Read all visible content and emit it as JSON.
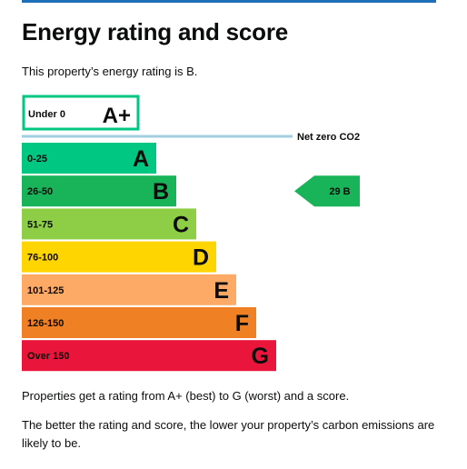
{
  "page": {
    "title": "Energy rating and score",
    "intro": "This property’s energy rating is B.",
    "paragraph_1": "Properties get a rating from A+ (best) to G (worst) and a score.",
    "paragraph_2": "The better the rating and score, the lower your property’s carbon emissions are likely to be."
  },
  "chart_data": {
    "type": "bar",
    "net_zero_label": "Net zero CO2",
    "top_band": {
      "range": "Under 0",
      "letter": "A+",
      "color": "#00c781"
    },
    "bands": [
      {
        "range": "0-25",
        "letter": "A",
        "color": "#00c781"
      },
      {
        "range": "26-50",
        "letter": "B",
        "color": "#19b459"
      },
      {
        "range": "51-75",
        "letter": "C",
        "color": "#8dce46"
      },
      {
        "range": "76-100",
        "letter": "D",
        "color": "#ffd500"
      },
      {
        "range": "101-125",
        "letter": "E",
        "color": "#fcaa65"
      },
      {
        "range": "126-150",
        "letter": "F",
        "color": "#ef8023"
      },
      {
        "range": "Over 150",
        "letter": "G",
        "color": "#e9153b"
      }
    ],
    "current": {
      "score": 29,
      "letter": "B",
      "label": "29  B",
      "color": "#19b459"
    },
    "net_zero_line_color": "#a3cfe2"
  }
}
